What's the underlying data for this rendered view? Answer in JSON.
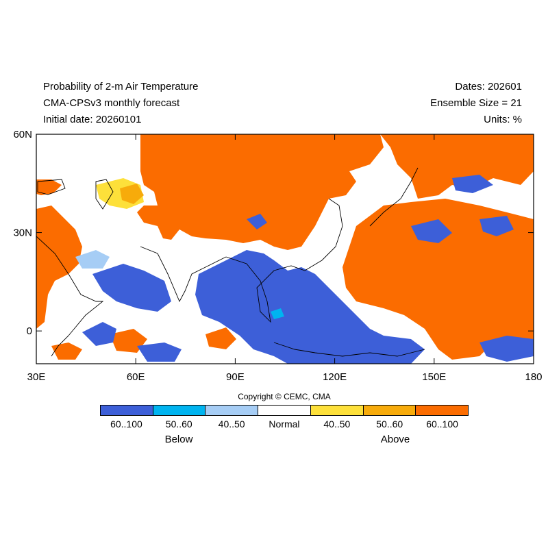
{
  "header": {
    "title_line1": "Probability of 2-m Air Temperature",
    "title_line2": "CMA-CPSv3 monthly forecast",
    "title_line3": "Initial date: 20260101",
    "right_line1": "Dates: 202601",
    "right_line2": "Ensemble Size = 21",
    "right_line3": "Units: %"
  },
  "map": {
    "lon_range": [
      30,
      180
    ],
    "lat_range": [
      -10,
      60
    ],
    "lon_ticks": [
      "30E",
      "60E",
      "90E",
      "120E",
      "150E",
      "180"
    ],
    "lat_ticks": [
      "60N",
      "30N",
      "0"
    ],
    "lon_tick_values": [
      30,
      60,
      90,
      120,
      150,
      180
    ],
    "lat_tick_values": [
      60,
      30,
      0
    ]
  },
  "copyright": "Copyright © CEMC, CMA",
  "legend": {
    "swatches": [
      {
        "label": "60..100",
        "color": "#3d5fd8"
      },
      {
        "label": "50..60",
        "color": "#00b4f0"
      },
      {
        "label": "40..50",
        "color": "#a6cdf5"
      },
      {
        "label": "Normal",
        "color": "#ffffff"
      },
      {
        "label": "40..50",
        "color": "#fde03a"
      },
      {
        "label": "50..60",
        "color": "#f7ab0b"
      },
      {
        "label": "60..100",
        "color": "#fb6c00"
      }
    ],
    "below_label": "Below",
    "above_label": "Above"
  }
}
